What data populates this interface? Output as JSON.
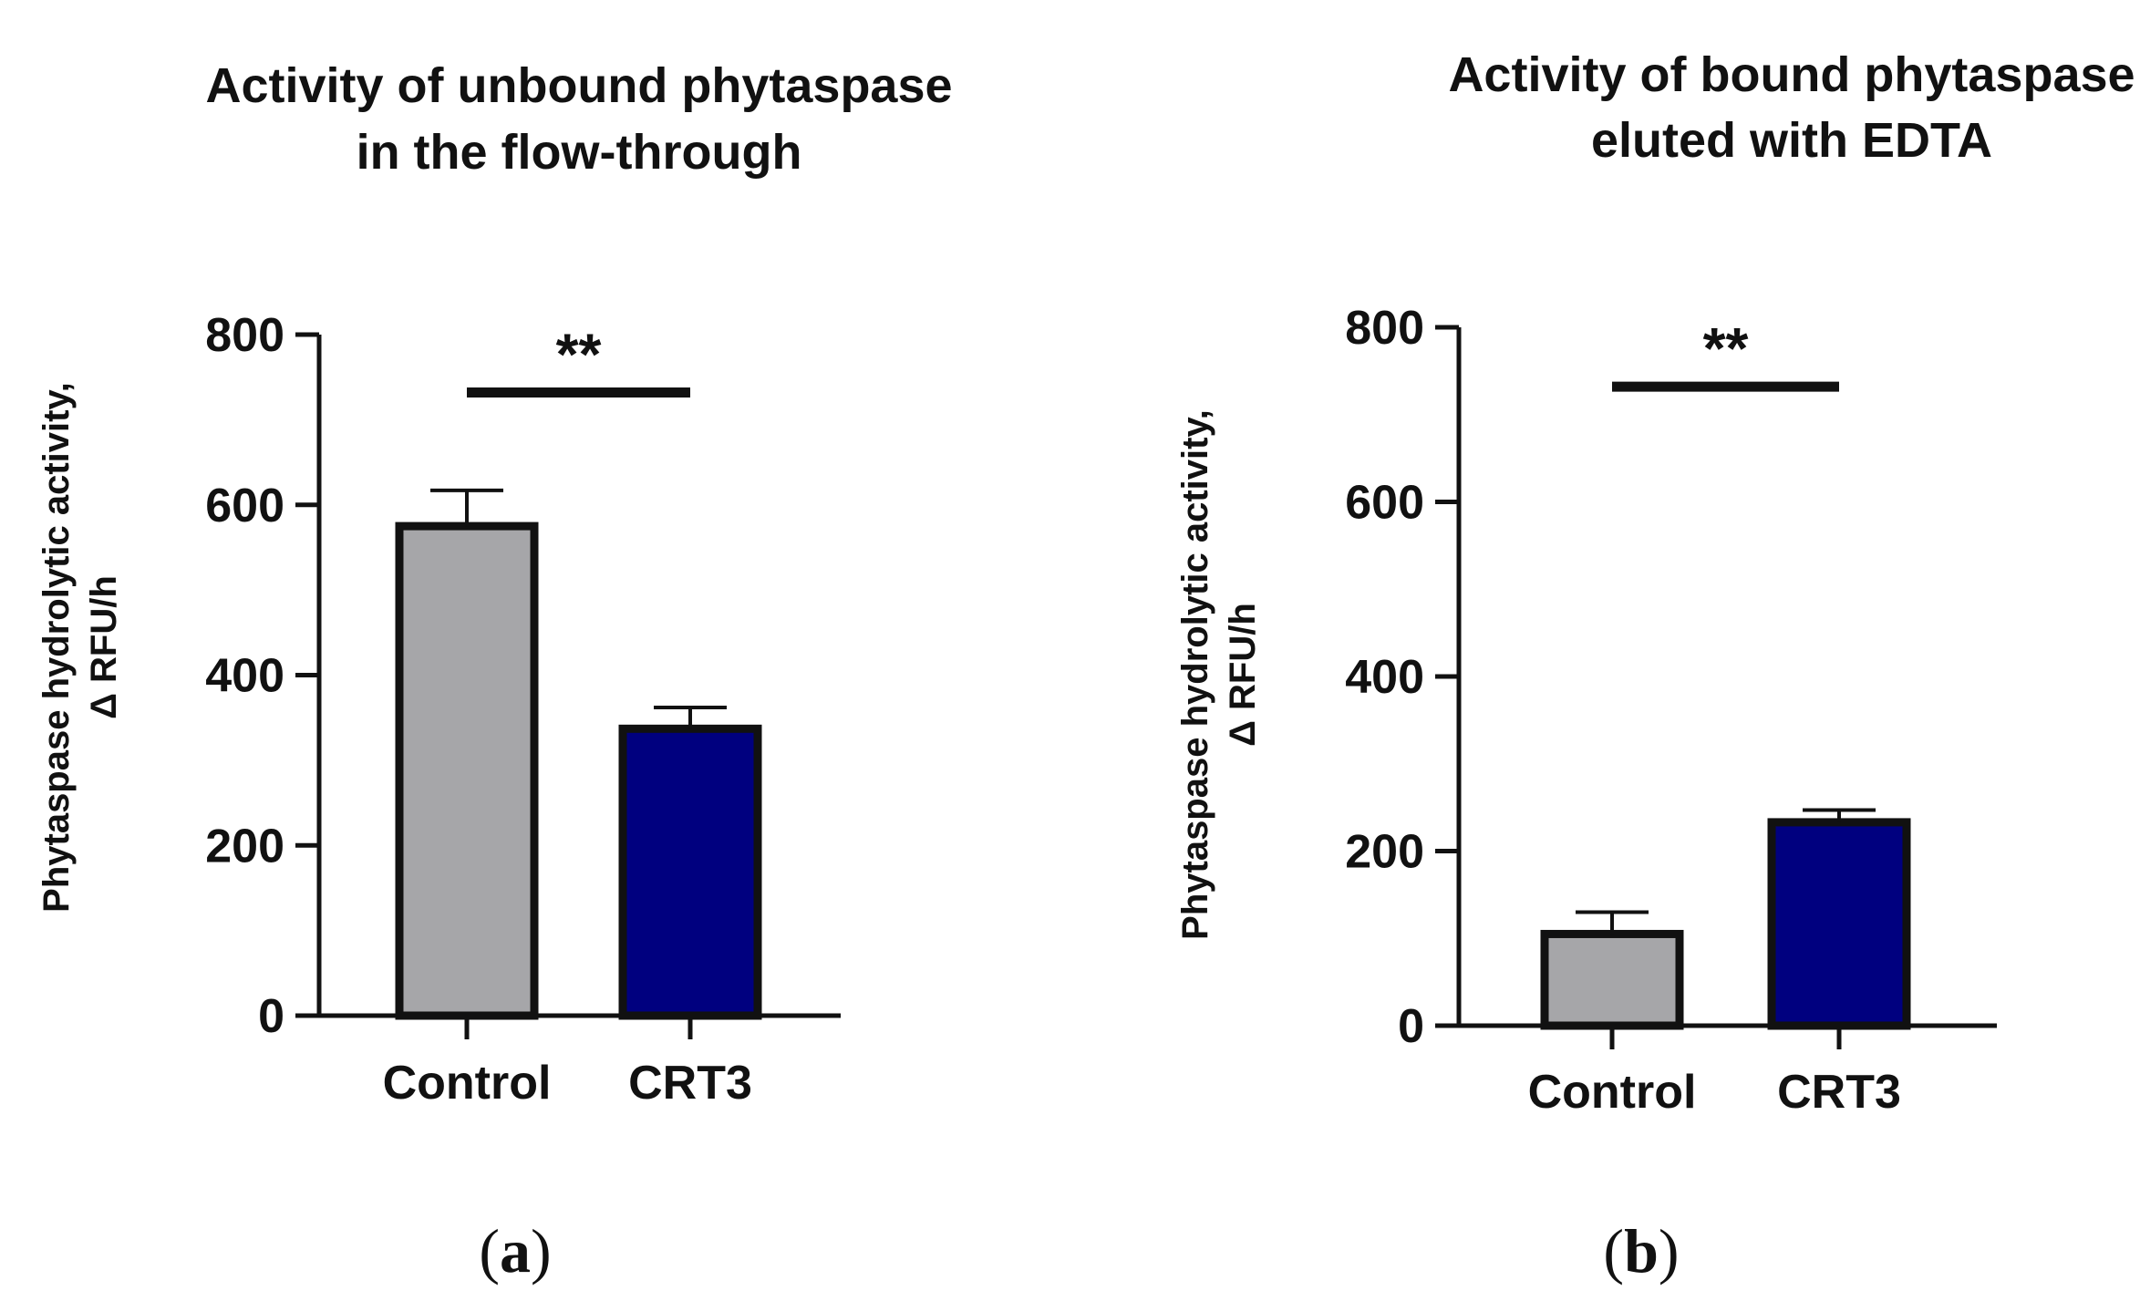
{
  "chart_data": [
    {
      "type": "bar",
      "panel": "a",
      "title_lines": [
        "Activity of unbound phytaspase",
        "in the flow-through"
      ],
      "ylabel_lines": [
        "Phytaspase hydrolytic activity,",
        "Δ RFU/h"
      ],
      "xlabel": "",
      "categories": [
        "Control",
        "CRT3"
      ],
      "values": [
        575,
        337
      ],
      "errors": [
        42,
        25
      ],
      "bar_colors": [
        "#a6a6a9",
        "#00007f"
      ],
      "ylim": [
        0,
        800
      ],
      "yticks": [
        0,
        200,
        400,
        600,
        800
      ],
      "ytick_labels": [
        "0",
        "200",
        "400",
        "600",
        "800"
      ],
      "significance": {
        "label": "**",
        "value": 732,
        "between": [
          0,
          1
        ]
      },
      "grid": false,
      "panel_label": {
        "open": "(",
        "letter": "a",
        "close": ")"
      }
    },
    {
      "type": "bar",
      "panel": "b",
      "title_lines": [
        "Activity of bound phytaspase",
        "eluted with EDTA"
      ],
      "ylabel_lines": [
        "Phytaspase hydrolytic activity,",
        "Δ RFU/h"
      ],
      "xlabel": "",
      "categories": [
        "Control",
        "CRT3"
      ],
      "values": [
        105,
        233
      ],
      "errors": [
        25,
        14
      ],
      "bar_colors": [
        "#a6a6a9",
        "#00007f"
      ],
      "ylim": [
        0,
        800
      ],
      "yticks": [
        0,
        200,
        400,
        600,
        800
      ],
      "ytick_labels": [
        "0",
        "200",
        "400",
        "600",
        "800"
      ],
      "significance": {
        "label": "**",
        "value": 732,
        "between": [
          0,
          1
        ]
      },
      "grid": false,
      "panel_label": {
        "open": "(",
        "letter": "b",
        "close": ")"
      }
    }
  ],
  "colors": {
    "axis": "#111111",
    "bar_outline": "#111111"
  }
}
